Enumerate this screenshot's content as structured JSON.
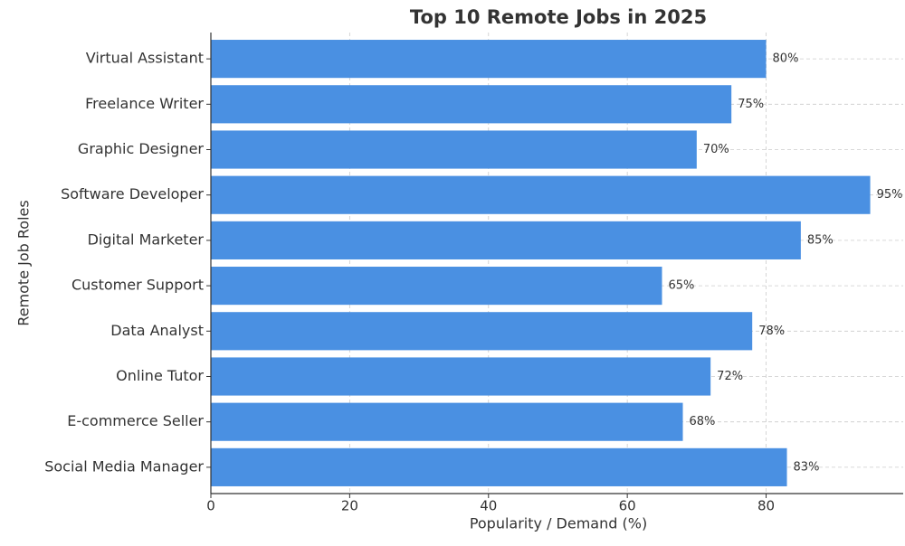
{
  "chart_data": {
    "type": "bar",
    "orientation": "horizontal",
    "title": "Top 10 Remote Jobs in 2025",
    "x_label": "Popularity / Demand (%)",
    "y_label": "Remote Job Roles",
    "categories": [
      "Virtual Assistant",
      "Freelance Writer",
      "Graphic Designer",
      "Software Developer",
      "Digital Marketer",
      "Customer Support",
      "Data Analyst",
      "Online Tutor",
      "E-commerce Seller",
      "Social Media Manager"
    ],
    "values": [
      80,
      75,
      70,
      95,
      85,
      65,
      78,
      72,
      68,
      83
    ],
    "value_labels": [
      "80%",
      "75%",
      "70%",
      "95%",
      "85%",
      "65%",
      "78%",
      "72%",
      "68%",
      "83%"
    ],
    "color": "#4a90e2",
    "xlim": [
      0,
      99.75
    ],
    "xticks": [
      0,
      20,
      40,
      60,
      80
    ],
    "grid": true
  }
}
